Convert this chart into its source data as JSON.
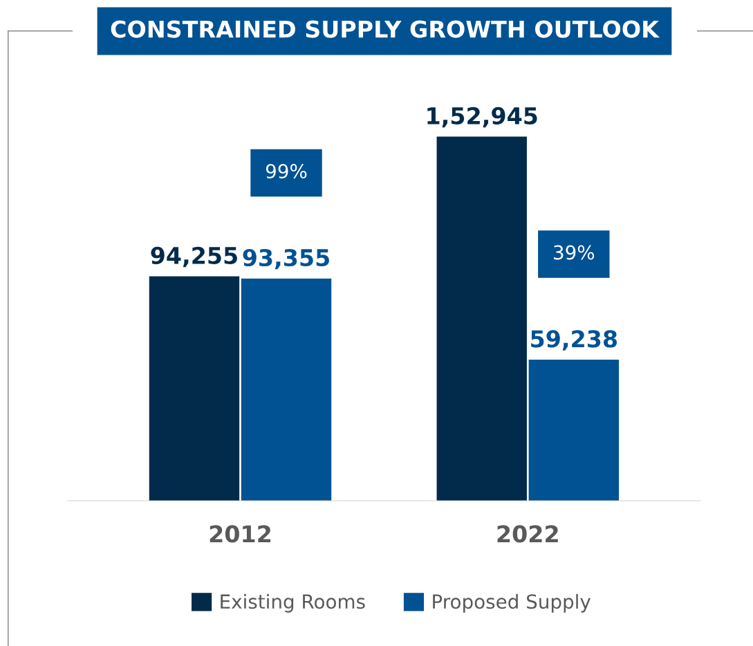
{
  "chart_data": {
    "type": "bar",
    "title": "CONSTRAINED SUPPLY GROWTH OUTLOOK",
    "categories": [
      "2012",
      "2022"
    ],
    "series": [
      {
        "name": "Existing Rooms",
        "color": "#022b4b",
        "values": [
          94255,
          152945
        ],
        "value_labels": [
          "94,255",
          "1,52,945"
        ]
      },
      {
        "name": "Proposed Supply",
        "color": "#005293",
        "values": [
          93355,
          59238
        ],
        "value_labels": [
          "93,355",
          "59,238"
        ]
      }
    ],
    "annotations": [
      "99%",
      "39%"
    ],
    "legend": "bottom",
    "grid": false
  }
}
